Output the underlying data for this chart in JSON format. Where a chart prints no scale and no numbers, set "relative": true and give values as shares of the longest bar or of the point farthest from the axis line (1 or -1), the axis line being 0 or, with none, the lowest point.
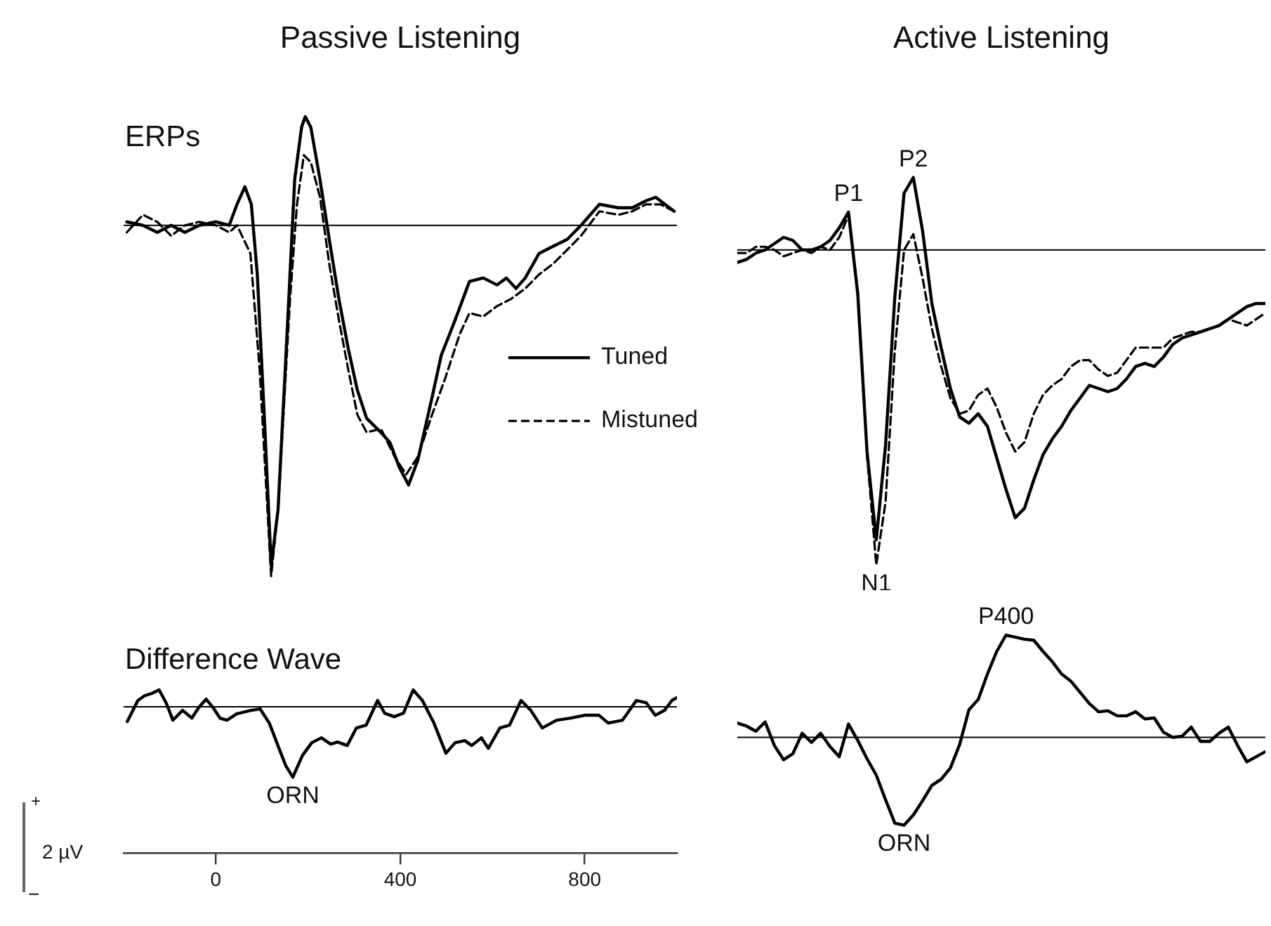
{
  "chart_data": [
    {
      "type": "line",
      "title": "Passive Listening",
      "annotations": [
        "ERPs"
      ],
      "legend": "right",
      "relative": true,
      "tick_labels": false,
      "xlim": [
        -200,
        1000
      ],
      "ref_lines": [
        {
          "axis": "y",
          "value": 0
        }
      ],
      "series": [
        {
          "name": "Tuned",
          "color": "#000000",
          "x": [
            -193,
            -158,
            -127,
            -97,
            -67,
            -36,
            0,
            29,
            46,
            63,
            77,
            90,
            105,
            120,
            135,
            156,
            171,
            186,
            194,
            206,
            226,
            246,
            267,
            287,
            307,
            327,
            358,
            378,
            398,
            418,
            438,
            469,
            489,
            519,
            550,
            580,
            610,
            630,
            651,
            671,
            701,
            731,
            762,
            792,
            832,
            873,
            903,
            933,
            954,
            994
          ],
          "values": [
            0.01,
            0,
            -0.02,
            0,
            -0.02,
            0,
            0.01,
            0,
            0.06,
            0.11,
            0.06,
            -0.14,
            -0.54,
            -0.97,
            -0.81,
            -0.27,
            0.13,
            0.28,
            0.31,
            0.28,
            0.13,
            -0.04,
            -0.21,
            -0.35,
            -0.47,
            -0.55,
            -0.59,
            -0.62,
            -0.69,
            -0.74,
            -0.67,
            -0.49,
            -0.37,
            -0.27,
            -0.16,
            -0.15,
            -0.17,
            -0.15,
            -0.18,
            -0.15,
            -0.08,
            -0.06,
            -0.04,
            0,
            0.06,
            0.05,
            0.05,
            0.07,
            0.08,
            0.04
          ]
        },
        {
          "name": "Mistuned",
          "color": "#000000",
          "line_style": "dashed",
          "x": [
            -193,
            -158,
            -127,
            -97,
            -67,
            -36,
            0,
            29,
            46,
            75,
            95,
            120,
            135,
            161,
            176,
            191,
            206,
            226,
            246,
            267,
            287,
            307,
            327,
            358,
            388,
            413,
            438,
            469,
            499,
            529,
            550,
            580,
            610,
            640,
            671,
            701,
            731,
            762,
            792,
            832,
            873,
            903,
            933,
            964,
            994
          ],
          "values": [
            -0.02,
            0.03,
            0.01,
            -0.03,
            0,
            0.01,
            0,
            -0.02,
            0,
            -0.08,
            -0.41,
            -1,
            -0.81,
            -0.21,
            0.06,
            0.2,
            0.18,
            0.08,
            -0.11,
            -0.27,
            -0.41,
            -0.54,
            -0.59,
            -0.58,
            -0.66,
            -0.71,
            -0.66,
            -0.54,
            -0.43,
            -0.31,
            -0.25,
            -0.26,
            -0.23,
            -0.21,
            -0.18,
            -0.14,
            -0.11,
            -0.07,
            -0.03,
            0.04,
            0.03,
            0.04,
            0.06,
            0.06,
            0.04
          ]
        }
      ]
    },
    {
      "type": "line",
      "title": "Active Listening",
      "relative": true,
      "tick_labels": false,
      "categories": [
        null,
        null,
        null,
        null,
        null,
        null,
        null,
        null,
        null,
        null,
        null,
        null,
        null,
        null,
        null,
        null,
        null,
        null,
        null,
        null,
        null,
        null,
        null,
        null,
        null,
        null,
        null,
        null,
        null,
        null,
        null,
        null,
        null,
        null,
        null,
        null,
        null,
        null,
        null,
        null,
        null,
        null,
        null,
        null,
        null,
        null,
        null,
        null,
        null,
        null,
        null,
        null,
        null,
        null,
        null,
        null,
        null,
        null
      ],
      "ref_lines": [
        {
          "axis": "y",
          "value": 0
        }
      ],
      "annotations": [
        {
          "text": "P1",
          "y": 0.12
        },
        {
          "text": "P2",
          "y": 0.23
        },
        {
          "text": "N1",
          "y": -1
        }
      ],
      "series": [
        {
          "color": "#000000",
          "values": [
            -0.04,
            -0.03,
            -0.01,
            0,
            0.02,
            0.04,
            0.03,
            0,
            0,
            0.01,
            0.03,
            0.07,
            0.12,
            -0.14,
            -0.64,
            -0.92,
            -0.62,
            -0.15,
            0.18,
            0.23,
            0.06,
            -0.17,
            -0.31,
            -0.44,
            -0.53,
            -0.55,
            -0.52,
            -0.56,
            -0.66,
            -0.76,
            -0.85,
            -0.82,
            -0.73,
            -0.65,
            -0.6,
            -0.56,
            -0.51,
            -0.47,
            -0.43,
            -0.44,
            -0.45,
            -0.44,
            -0.41,
            -0.37,
            -0.36,
            -0.37,
            -0.34,
            -0.3,
            -0.28,
            -0.27,
            -0.26,
            -0.25,
            -0.24,
            -0.22,
            -0.2,
            -0.18,
            -0.17,
            -0.17
          ]
        },
        {
          "color": "#000000",
          "line_style": "dashed",
          "values": [
            -0.01,
            -0.01,
            0.01,
            0.01,
            0,
            -0.02,
            -0.01,
            0,
            -0.01,
            0.01,
            0,
            0.04,
            0.11,
            -0.13,
            -0.65,
            -1,
            -0.8,
            -0.32,
            0,
            0.05,
            -0.09,
            -0.25,
            -0.37,
            -0.47,
            -0.52,
            -0.51,
            -0.46,
            -0.44,
            -0.5,
            -0.58,
            -0.64,
            -0.61,
            -0.52,
            -0.46,
            -0.43,
            -0.41,
            -0.37,
            -0.35,
            -0.35,
            -0.38,
            -0.4,
            -0.39,
            -0.35,
            -0.31,
            -0.31,
            -0.31,
            -0.31,
            -0.28,
            -0.27,
            -0.26,
            -0.26,
            -0.25,
            -0.24,
            -0.22,
            -0.23,
            -0.24,
            -0.22,
            -0.2
          ]
        }
      ]
    },
    {
      "type": "line",
      "relative": true,
      "tick_labels": "x",
      "xlim": [
        -200,
        1000
      ],
      "xticks": [
        0,
        400,
        800
      ],
      "ref_lines": [
        {
          "axis": "y",
          "value": 0
        }
      ],
      "annotations": [
        "Difference Wave",
        "+",
        "2 µV",
        "−",
        {
          "text": "ORN",
          "x": 167,
          "y": -1
        }
      ],
      "series": [
        {
          "color": "#000000",
          "x": [
            -192,
            -169,
            -154,
            -139,
            -123,
            -108,
            -93,
            -72,
            -52,
            -37,
            -21,
            -6,
            9,
            24,
            45,
            76,
            96,
            116,
            137,
            152,
            167,
            188,
            208,
            229,
            249,
            264,
            285,
            305,
            326,
            351,
            366,
            387,
            407,
            428,
            448,
            473,
            499,
            519,
            540,
            555,
            576,
            591,
            616,
            637,
            662,
            683,
            708,
            739,
            769,
            800,
            831,
            851,
            882,
            912,
            933,
            953,
            973,
            989,
            1000
          ],
          "values": [
            -0.21,
            0.09,
            0.16,
            0.19,
            0.24,
            0.06,
            -0.19,
            -0.05,
            -0.16,
            -0.01,
            0.11,
            -0.01,
            -0.16,
            -0.19,
            -0.1,
            -0.05,
            -0.03,
            -0.23,
            -0.59,
            -0.84,
            -1,
            -0.69,
            -0.51,
            -0.44,
            -0.53,
            -0.5,
            -0.55,
            -0.3,
            -0.26,
            0.09,
            -0.09,
            -0.14,
            -0.09,
            0.24,
            0.09,
            -0.23,
            -0.66,
            -0.51,
            -0.48,
            -0.55,
            -0.44,
            -0.59,
            -0.3,
            -0.26,
            0.09,
            -0.05,
            -0.3,
            -0.19,
            -0.16,
            -0.12,
            -0.12,
            -0.23,
            -0.19,
            0.09,
            0.06,
            -0.12,
            -0.05,
            0.09,
            0.13
          ]
        }
      ]
    },
    {
      "type": "line",
      "relative": true,
      "tick_labels": false,
      "categories": [
        null,
        null,
        null,
        null,
        null,
        null,
        null,
        null,
        null,
        null,
        null,
        null,
        null,
        null,
        null,
        null,
        null,
        null,
        null,
        null,
        null,
        null,
        null,
        null,
        null,
        null,
        null,
        null,
        null,
        null,
        null,
        null,
        null,
        null,
        null,
        null,
        null,
        null,
        null,
        null,
        null,
        null,
        null,
        null,
        null,
        null,
        null,
        null,
        null,
        null,
        null,
        null,
        null,
        null,
        null,
        null,
        null,
        null
      ],
      "ref_lines": [
        {
          "axis": "y",
          "value": 0
        }
      ],
      "annotations": [
        {
          "text": "P400",
          "y": 1
        },
        {
          "text": "ORN",
          "y": -0.86
        }
      ],
      "series": [
        {
          "color": "#000000",
          "values": [
            0.14,
            0.11,
            0.06,
            0.15,
            -0.08,
            -0.22,
            -0.16,
            0.04,
            -0.05,
            0.04,
            -0.09,
            -0.19,
            0.13,
            -0.03,
            -0.21,
            -0.37,
            -0.61,
            -0.84,
            -0.86,
            -0.76,
            -0.62,
            -0.47,
            -0.41,
            -0.3,
            -0.07,
            0.27,
            0.37,
            0.62,
            0.84,
            1,
            0.98,
            0.96,
            0.95,
            0.84,
            0.74,
            0.62,
            0.55,
            0.44,
            0.33,
            0.25,
            0.26,
            0.21,
            0.21,
            0.25,
            0.18,
            0.19,
            0.05,
            0,
            0.01,
            0.1,
            -0.04,
            -0.04,
            0.04,
            0.1,
            -0.08,
            -0.24,
            -0.19,
            -0.14
          ]
        }
      ]
    }
  ]
}
